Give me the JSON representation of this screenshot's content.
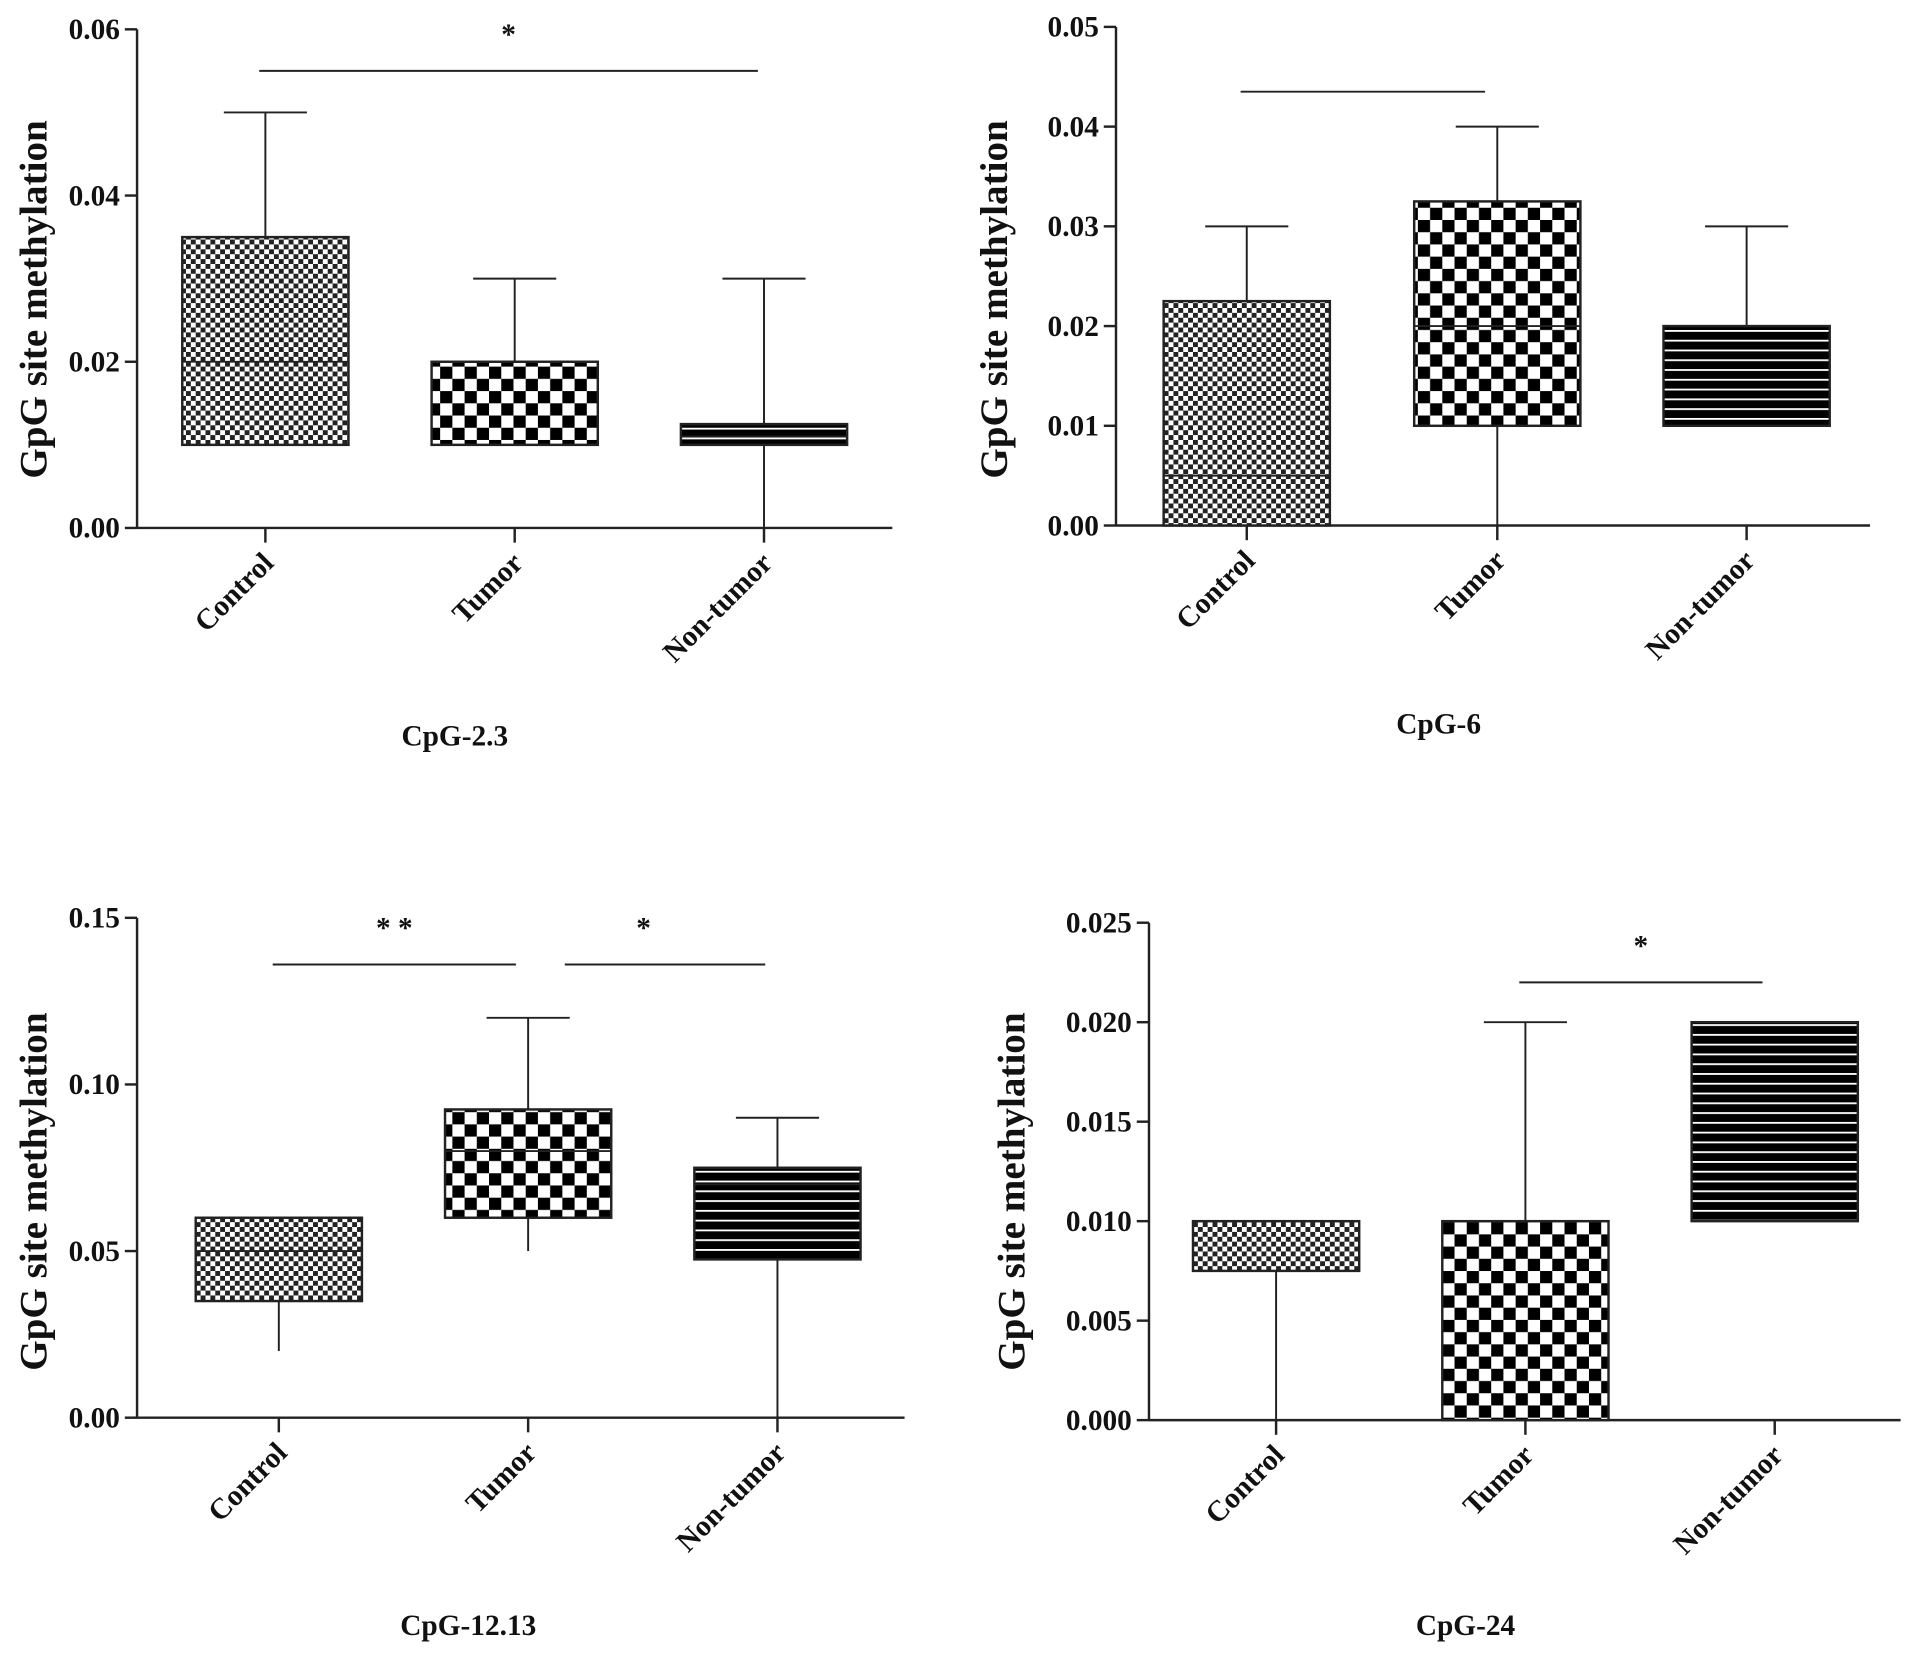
{
  "chart_data": [
    {
      "type": "box",
      "title": "CpG-2.3",
      "ylabel": "GpG site methylation",
      "ylim": [
        0,
        0.06
      ],
      "yticks": [
        "0.00",
        "0.02",
        "0.04",
        "0.06"
      ],
      "ytick_values": [
        0,
        0.02,
        0.04,
        0.06
      ],
      "categories": [
        "Control",
        "Tumor",
        "Non-tumor"
      ],
      "boxes": [
        {
          "min": 0.01,
          "q1": 0.01,
          "median": 0.02,
          "q3": 0.035,
          "max": 0.05
        },
        {
          "min": 0.01,
          "q1": 0.01,
          "median": 0.02,
          "q3": 0.02,
          "max": 0.03
        },
        {
          "min": 0.0,
          "q1": 0.01,
          "median": 0.011,
          "q3": 0.0125,
          "max": 0.03
        }
      ],
      "significance": [
        {
          "from": 0,
          "to": 2,
          "y": 0.055,
          "label": "*"
        }
      ]
    },
    {
      "type": "box",
      "title": "CpG-6",
      "ylabel": "GpG site methylation",
      "ylim": [
        0,
        0.05
      ],
      "yticks": [
        "0.00",
        "0.01",
        "0.02",
        "0.03",
        "0.04",
        "0.05"
      ],
      "ytick_values": [
        0,
        0.01,
        0.02,
        0.03,
        0.04,
        0.05
      ],
      "categories": [
        "Control",
        "Tumor",
        "Non-tumor"
      ],
      "boxes": [
        {
          "min": 0.0,
          "q1": 0.0,
          "median": 0.005,
          "q3": 0.0225,
          "max": 0.03
        },
        {
          "min": 0.0,
          "q1": 0.01,
          "median": 0.02,
          "q3": 0.0325,
          "max": 0.04
        },
        {
          "min": 0.01,
          "q1": 0.01,
          "median": 0.02,
          "q3": 0.02,
          "max": 0.03
        }
      ],
      "significance": [
        {
          "from": 0,
          "to": 1,
          "y": 0.0435,
          "label": ""
        }
      ]
    },
    {
      "type": "box",
      "title": "CpG-12.13",
      "ylabel": "GpG site methylation",
      "ylim": [
        0,
        0.15
      ],
      "yticks": [
        "0.00",
        "0.05",
        "0.10",
        "0.15"
      ],
      "ytick_values": [
        0,
        0.05,
        0.1,
        0.15
      ],
      "categories": [
        "Control",
        "Tumor",
        "Non-tumor"
      ],
      "boxes": [
        {
          "min": 0.02,
          "q1": 0.035,
          "median": 0.05,
          "q3": 0.06,
          "max": 0.06
        },
        {
          "min": 0.05,
          "q1": 0.06,
          "median": 0.08,
          "q3": 0.0925,
          "max": 0.12
        },
        {
          "min": 0.0,
          "q1": 0.0475,
          "median": 0.07,
          "q3": 0.075,
          "max": 0.09
        }
      ],
      "significance": [
        {
          "from": 0,
          "to": 1,
          "y": 0.136,
          "label": "* *"
        },
        {
          "from": 1,
          "to": 2,
          "y": 0.136,
          "label": "*"
        }
      ]
    },
    {
      "type": "box",
      "title": "CpG-24",
      "ylabel": "GpG site methylation",
      "ylim": [
        0,
        0.025
      ],
      "yticks": [
        "0.000",
        "0.005",
        "0.010",
        "0.015",
        "0.020",
        "0.025"
      ],
      "ytick_values": [
        0,
        0.005,
        0.01,
        0.015,
        0.02,
        0.025
      ],
      "categories": [
        "Control",
        "Tumor",
        "Non-tumor"
      ],
      "boxes": [
        {
          "min": 0.0,
          "q1": 0.0075,
          "median": 0.01,
          "q3": 0.01,
          "max": 0.01
        },
        {
          "min": 0.0,
          "q1": 0.0,
          "median": 0.01,
          "q3": 0.01,
          "max": 0.02
        },
        {
          "min": 0.01,
          "q1": 0.01,
          "median": 0.02,
          "q3": 0.02,
          "max": 0.02
        }
      ],
      "significance": [
        {
          "from": 1,
          "to": 2,
          "y": 0.022,
          "label": "*"
        }
      ]
    }
  ]
}
